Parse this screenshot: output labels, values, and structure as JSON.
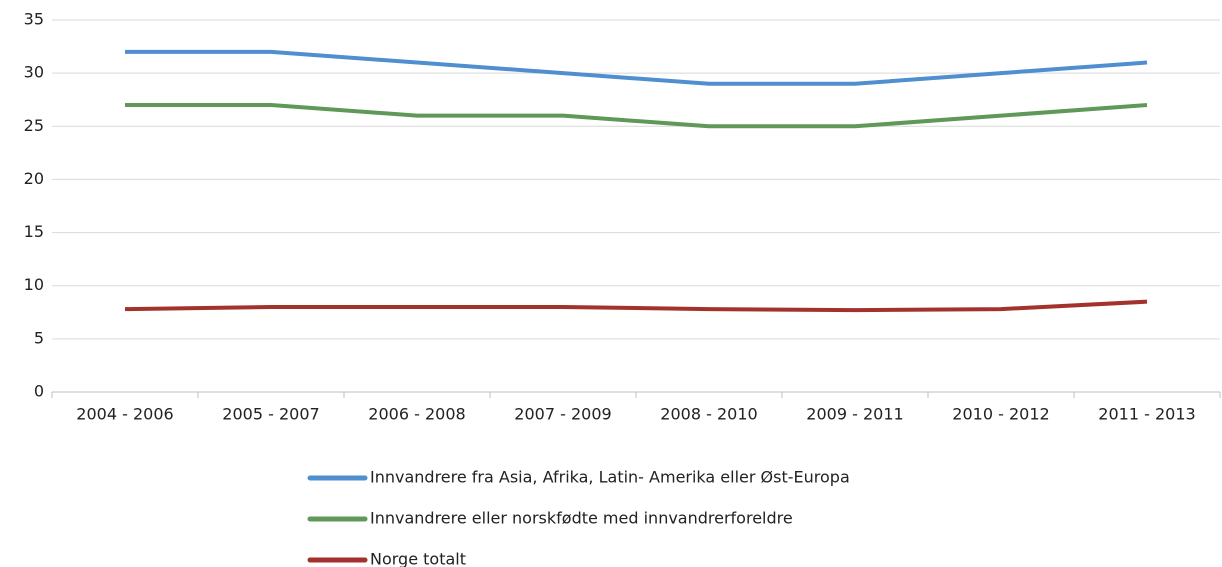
{
  "chart_data": {
    "type": "line",
    "categories": [
      "2004 - 2006",
      "2005 - 2007",
      "2006 - 2008",
      "2007 - 2009",
      "2008 - 2010",
      "2009 - 2011",
      "2010 - 2012",
      "2011 - 2013"
    ],
    "series": [
      {
        "name": "Innvandrere fra Asia, Afrika, Latin- Amerika eller Øst-Europa",
        "color": "#4f8fcf",
        "values": [
          32,
          32,
          31,
          30,
          29,
          29,
          30,
          31
        ]
      },
      {
        "name": "Innvandrere eller norskfødte med innvandrerforeldre",
        "color": "#5f9858",
        "values": [
          27,
          27,
          26,
          26,
          25,
          25,
          26,
          27
        ]
      },
      {
        "name": "Norge totalt",
        "color": "#a3322c",
        "values": [
          7.8,
          8,
          8,
          8,
          7.8,
          7.7,
          7.8,
          8.5
        ]
      }
    ],
    "ylim": [
      0,
      35
    ],
    "yticks": [
      0,
      5,
      10,
      15,
      20,
      25,
      30,
      35
    ],
    "grid": true,
    "legend": "bottom"
  }
}
